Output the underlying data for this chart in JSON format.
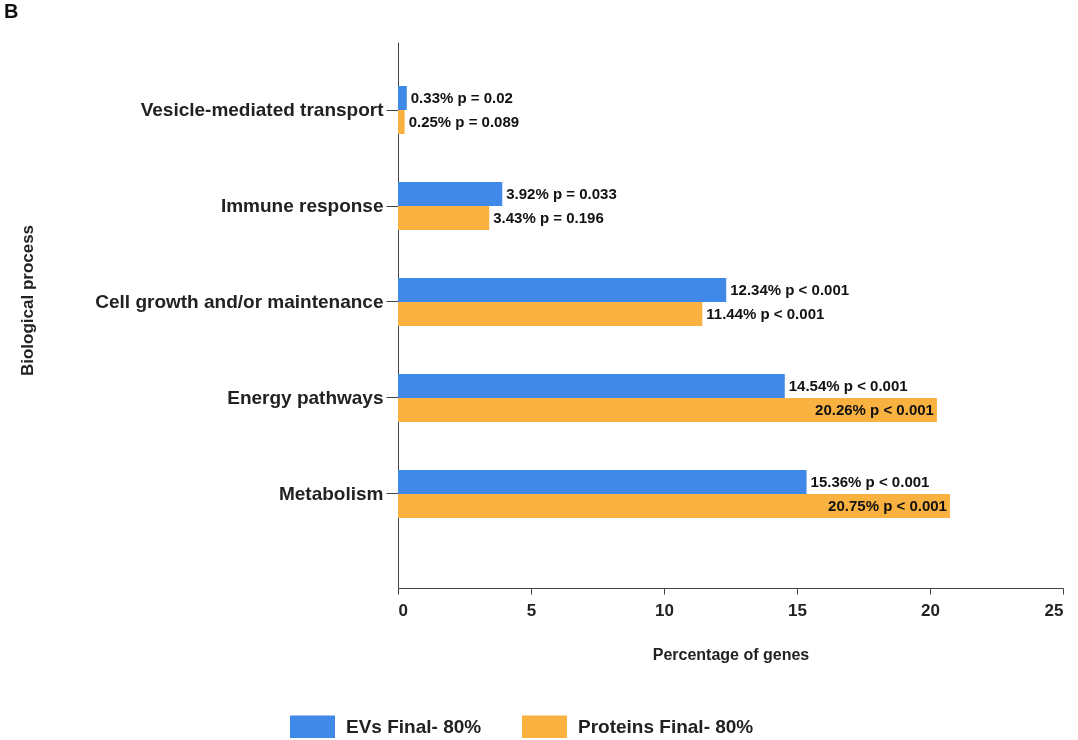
{
  "chart_data": {
    "type": "bar",
    "orientation": "horizontal",
    "xlabel": "Percentage of genes",
    "ylabel": "Biological process",
    "categories": [
      "Vesicle-mediated transport",
      "Immune response",
      "Cell growth and/or maintenance",
      "Energy pathways",
      "Metabolism"
    ],
    "series": [
      {
        "name": "EVs Final- 80%",
        "color": "#4189e9",
        "values": [
          0.33,
          3.92,
          12.34,
          14.54,
          15.36
        ],
        "value_labels": [
          "0.33%  p = 0.02",
          "3.92%  p = 0.033",
          "12.34%   p < 0.001",
          "14.54%   p < 0.001",
          "15.36%   p < 0.001"
        ]
      },
      {
        "name": "Proteins Final- 80%",
        "color": "#f9b13f",
        "values": [
          0.25,
          3.43,
          11.44,
          20.26,
          20.75
        ],
        "value_labels": [
          "0.25%  p = 0.089",
          "3.43%  p = 0.196",
          "11.44%   p < 0.001",
          "20.26%   p < 0.001",
          "20.75%   p < 0.001"
        ]
      }
    ],
    "xlim": [
      0,
      25
    ],
    "xticks": [
      0,
      5,
      10,
      15,
      20,
      25
    ],
    "grid": false,
    "legend": "bottom",
    "annotations": [
      "B"
    ]
  }
}
